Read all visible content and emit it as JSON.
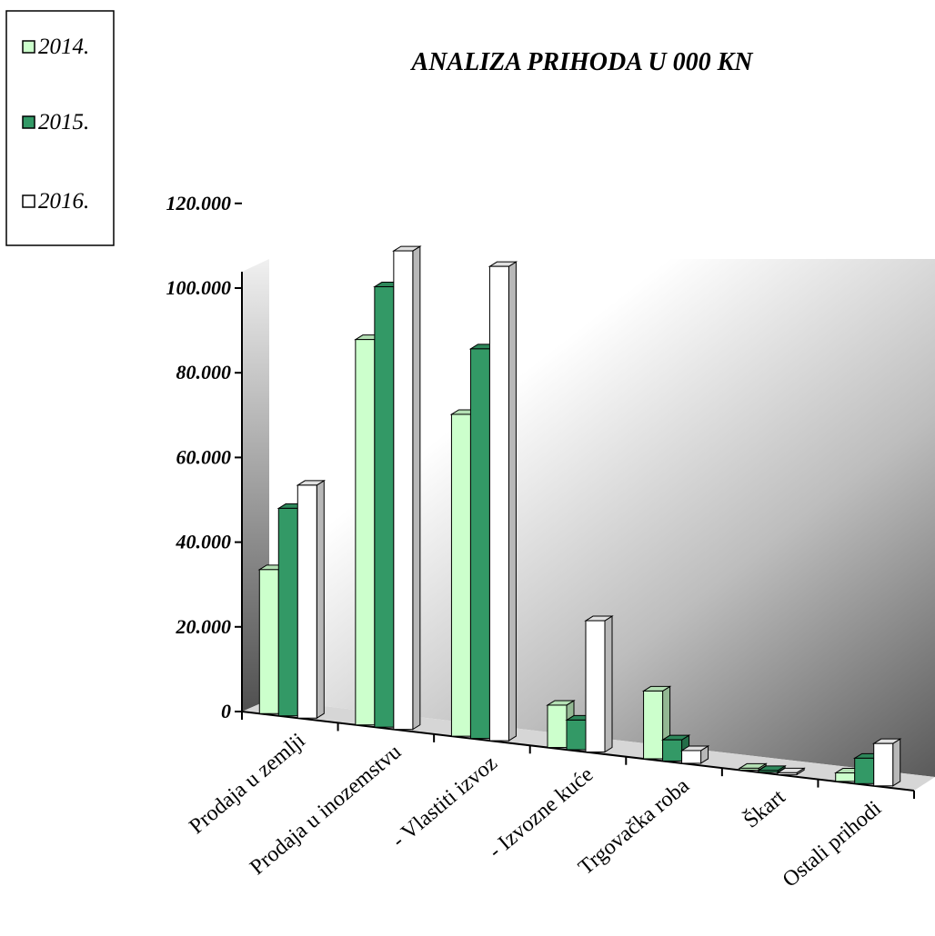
{
  "chart_data": {
    "type": "bar",
    "title": "ANALIZA PRIHODA U 000 KN",
    "categories": [
      "Prodaja u zemlji",
      "Prodaja u inozemstvu",
      "- Vlastiti izvoz",
      "- Izvozne kuće",
      "Trgovačka roba",
      "Škart",
      "Ostali prihodi"
    ],
    "series": [
      {
        "name": "2014.",
        "color": "#ccffcc",
        "values": [
          34000,
          91000,
          76000,
          10000,
          16000,
          300,
          2000
        ]
      },
      {
        "name": "2015.",
        "color": "#339966",
        "values": [
          49000,
          104000,
          92000,
          7000,
          5000,
          300,
          6000
        ]
      },
      {
        "name": "2016.",
        "color": "#ffffff",
        "values": [
          55000,
          113000,
          112000,
          31000,
          3000,
          300,
          10000
        ]
      }
    ],
    "ylim": [
      0,
      120000
    ],
    "ytick_labels": [
      "0",
      "20.000",
      "40.000",
      "60.000",
      "80.000",
      "100.000",
      "120.000"
    ],
    "legend_position": "top-left",
    "grid": false,
    "projection": "3d"
  }
}
